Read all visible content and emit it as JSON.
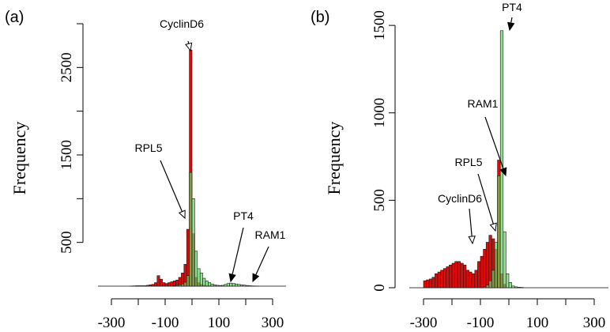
{
  "chart_data": [
    {
      "panel_label": "(a)",
      "type": "bar",
      "ylabel": "Frequency",
      "xlim": [
        -350,
        350
      ],
      "ylim": [
        0,
        3000
      ],
      "x_ticks": [
        "-300",
        "-100",
        "100",
        "300"
      ],
      "y_ticks": [
        "500",
        "1500",
        "2500"
      ],
      "bin_width": 10,
      "bins_start": -350,
      "series": [
        {
          "color": "#dd0a0a",
          "values": [
            0,
            0,
            0,
            0,
            0,
            0,
            0,
            0,
            0,
            0,
            0,
            0,
            2,
            3,
            5,
            5,
            5,
            5,
            10,
            15,
            20,
            40,
            120,
            80,
            40,
            30,
            40,
            50,
            60,
            70,
            100,
            150,
            250,
            650,
            2700,
            600,
            100,
            40,
            20,
            10,
            5,
            5,
            3,
            2,
            0,
            0,
            0,
            0,
            0,
            0,
            0,
            0,
            0,
            0,
            0,
            0,
            0,
            0,
            0,
            0,
            0,
            0,
            0,
            0,
            0,
            0,
            0,
            0,
            0,
            0
          ]
        },
        {
          "color": "#5fd45f",
          "values": [
            0,
            0,
            0,
            0,
            0,
            0,
            0,
            0,
            0,
            0,
            0,
            0,
            0,
            0,
            0,
            0,
            0,
            0,
            0,
            0,
            0,
            0,
            0,
            0,
            0,
            0,
            0,
            0,
            5,
            10,
            15,
            25,
            45,
            120,
            1300,
            1000,
            400,
            200,
            150,
            90,
            60,
            40,
            25,
            15,
            10,
            8,
            10,
            20,
            30,
            35,
            30,
            25,
            20,
            15,
            12,
            8,
            5,
            3,
            2,
            1,
            0,
            0,
            0,
            0,
            0,
            0,
            0,
            0,
            0,
            0
          ]
        }
      ],
      "annotations": [
        "CyclinD6",
        "RPL5",
        "PT4",
        "RAM1"
      ]
    },
    {
      "panel_label": "(b)",
      "type": "bar",
      "ylabel": "Frequency",
      "xlim": [
        -350,
        350
      ],
      "ylim": [
        0,
        1600
      ],
      "x_ticks": [
        "-300",
        "-100",
        "100",
        "300"
      ],
      "y_ticks": [
        "0",
        "500",
        "1000",
        "1500"
      ],
      "bin_width": 10,
      "bins_start": -350,
      "series": [
        {
          "color": "#dd0a0a",
          "values": [
            0,
            0,
            0,
            0,
            0,
            40,
            45,
            50,
            60,
            80,
            90,
            100,
            110,
            120,
            130,
            140,
            150,
            150,
            140,
            130,
            100,
            90,
            80,
            100,
            150,
            180,
            220,
            260,
            300,
            280,
            220,
            730,
            80,
            20,
            0,
            0,
            0,
            0,
            0,
            0,
            0,
            0,
            0,
            0,
            0,
            0,
            0,
            0,
            0,
            0,
            0,
            0,
            0,
            0,
            0,
            0,
            0,
            0,
            0,
            0,
            0,
            0,
            0,
            0,
            0,
            0,
            0,
            0,
            0,
            0
          ]
        },
        {
          "color": "#5fd45f",
          "values": [
            0,
            0,
            0,
            0,
            0,
            0,
            0,
            0,
            0,
            0,
            0,
            0,
            0,
            0,
            0,
            0,
            0,
            0,
            0,
            0,
            0,
            0,
            0,
            0,
            0,
            0,
            5,
            15,
            40,
            100,
            260,
            640,
            1470,
            320,
            80,
            30,
            10,
            5,
            3,
            2,
            0,
            0,
            0,
            0,
            0,
            0,
            0,
            0,
            0,
            0,
            0,
            0,
            0,
            0,
            0,
            0,
            0,
            0,
            0,
            0,
            0,
            0,
            0,
            0,
            0,
            0,
            0,
            0,
            0,
            0
          ]
        }
      ],
      "annotations": [
        "PT4",
        "RAM1",
        "RPL5",
        "CyclinD6"
      ]
    }
  ]
}
